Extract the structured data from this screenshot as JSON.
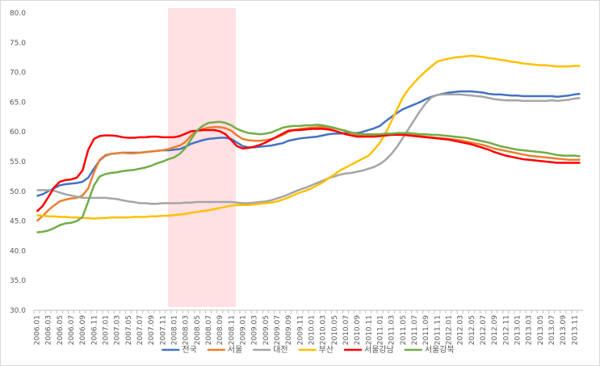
{
  "chart_data": {
    "type": "line",
    "categories": [
      "2006.01",
      null,
      "2006.03",
      null,
      "2006.05",
      null,
      "2006.07",
      null,
      "2006.09",
      null,
      "2006.11",
      null,
      "2007.01",
      null,
      "2007.03",
      null,
      "2007.05",
      null,
      "2007.07",
      null,
      "2007.09",
      null,
      "2007.11",
      null,
      "2008.01",
      null,
      "2008.03",
      null,
      "2008.05",
      null,
      "2008.07",
      null,
      "2008.09",
      null,
      "2008.11",
      null,
      "2009.01",
      null,
      "2009.03",
      null,
      "2009.05",
      null,
      "2009.07",
      null,
      "2009.09",
      null,
      "2009.11",
      null,
      "2010.01",
      null,
      "2010.03",
      null,
      "2010.05",
      null,
      "2010.07",
      null,
      "2010.09",
      null,
      "2010.11",
      null,
      "2011.01",
      null,
      "2011.03",
      null,
      "2011.05",
      null,
      "2011.07",
      null,
      "2011.09",
      null,
      "2011.11",
      null,
      "2012.01",
      null,
      "2012.03",
      null,
      "2012.05",
      null,
      "2012.07",
      null,
      "2012.09",
      null,
      "2012.11",
      null,
      "2013.01",
      null,
      "2013.03",
      null,
      "2013.05",
      null,
      "2013.07",
      null,
      "2013.09",
      null,
      "2013.11",
      null
    ],
    "series": [
      {
        "name": "전국",
        "color": "#4472c4",
        "values": [
          49.2,
          49.5,
          50.0,
          50.5,
          51.0,
          51.2,
          51.3,
          51.4,
          51.6,
          52.3,
          53.8,
          55.2,
          56.0,
          56.3,
          56.4,
          56.5,
          56.5,
          56.5,
          56.5,
          56.6,
          56.7,
          56.8,
          56.9,
          56.9,
          57.0,
          57.1,
          57.5,
          58.0,
          58.3,
          58.6,
          58.8,
          58.9,
          59.0,
          59.0,
          58.8,
          58.2,
          57.6,
          57.4,
          57.4,
          57.5,
          57.6,
          57.7,
          57.9,
          58.1,
          58.5,
          58.7,
          58.9,
          59.0,
          59.1,
          59.2,
          59.4,
          59.6,
          59.7,
          59.7,
          59.8,
          59.8,
          59.8,
          60.0,
          60.3,
          60.6,
          61.0,
          61.8,
          62.5,
          63.2,
          63.8,
          64.2,
          64.6,
          65.0,
          65.5,
          65.9,
          66.2,
          66.4,
          66.6,
          66.7,
          66.8,
          66.8,
          66.8,
          66.7,
          66.6,
          66.4,
          66.3,
          66.3,
          66.2,
          66.1,
          66.1,
          66.0,
          66.0,
          66.0,
          66.0,
          66.0,
          66.0,
          65.9,
          66.0,
          66.1,
          66.3,
          66.4
        ]
      },
      {
        "name": "서울",
        "color": "#ed7d31",
        "values": [
          45.0,
          45.8,
          46.8,
          47.6,
          48.3,
          48.6,
          48.8,
          48.9,
          49.3,
          50.5,
          53.2,
          55.3,
          56.1,
          56.3,
          56.4,
          56.5,
          56.4,
          56.4,
          56.5,
          56.6,
          56.7,
          56.8,
          56.9,
          57.1,
          57.4,
          57.7,
          58.3,
          59.4,
          60.2,
          60.5,
          60.7,
          60.8,
          60.8,
          60.6,
          60.2,
          59.4,
          58.8,
          58.6,
          58.5,
          58.5,
          58.6,
          58.8,
          59.1,
          59.5,
          60.0,
          60.3,
          60.5,
          60.6,
          60.7,
          60.8,
          60.8,
          60.7,
          60.6,
          60.4,
          60.1,
          59.8,
          59.5,
          59.4,
          59.3,
          59.3,
          59.3,
          59.4,
          59.5,
          59.6,
          59.6,
          59.5,
          59.4,
          59.3,
          59.2,
          59.1,
          59.0,
          58.9,
          58.8,
          58.7,
          58.6,
          58.4,
          58.2,
          58.0,
          57.8,
          57.5,
          57.2,
          57.0,
          56.8,
          56.6,
          56.4,
          56.2,
          56.0,
          55.9,
          55.8,
          55.7,
          55.6,
          55.5,
          55.4,
          55.3,
          55.3,
          55.3
        ]
      },
      {
        "name": "대전",
        "color": "#a5a5a5",
        "values": [
          50.2,
          50.2,
          50.2,
          50.1,
          49.8,
          49.5,
          49.3,
          49.1,
          48.9,
          48.9,
          48.9,
          48.9,
          48.9,
          48.8,
          48.7,
          48.5,
          48.3,
          48.2,
          48.0,
          48.0,
          47.9,
          47.9,
          48.0,
          48.0,
          48.0,
          48.0,
          48.1,
          48.1,
          48.2,
          48.2,
          48.2,
          48.2,
          48.2,
          48.2,
          48.2,
          48.1,
          48.0,
          48.0,
          48.1,
          48.2,
          48.3,
          48.5,
          48.8,
          49.1,
          49.5,
          49.9,
          50.3,
          50.6,
          51.0,
          51.4,
          51.8,
          52.2,
          52.5,
          52.8,
          53.0,
          53.1,
          53.3,
          53.5,
          53.8,
          54.1,
          54.6,
          55.3,
          56.3,
          57.5,
          59.0,
          60.5,
          62.0,
          63.5,
          64.8,
          65.8,
          66.2,
          66.3,
          66.3,
          66.3,
          66.3,
          66.2,
          66.1,
          66.0,
          65.9,
          65.7,
          65.5,
          65.4,
          65.3,
          65.3,
          65.3,
          65.2,
          65.2,
          65.2,
          65.2,
          65.2,
          65.3,
          65.2,
          65.3,
          65.4,
          65.6,
          65.7
        ]
      },
      {
        "name": "부산",
        "color": "#ffc000",
        "values": [
          46.0,
          45.9,
          45.8,
          45.8,
          45.7,
          45.7,
          45.6,
          45.6,
          45.5,
          45.5,
          45.4,
          45.5,
          45.5,
          45.6,
          45.6,
          45.6,
          45.6,
          45.7,
          45.7,
          45.7,
          45.8,
          45.8,
          45.9,
          45.9,
          46.0,
          46.1,
          46.2,
          46.4,
          46.5,
          46.7,
          46.8,
          47.0,
          47.2,
          47.4,
          47.6,
          47.7,
          47.7,
          47.7,
          47.8,
          47.9,
          48.0,
          48.1,
          48.3,
          48.6,
          49.0,
          49.4,
          49.8,
          50.1,
          50.5,
          51.0,
          51.5,
          52.2,
          52.8,
          53.5,
          54.0,
          54.5,
          55.0,
          55.5,
          56.0,
          57.0,
          58.2,
          59.8,
          61.8,
          63.8,
          65.8,
          67.2,
          68.3,
          69.3,
          70.2,
          71.0,
          71.8,
          72.1,
          72.3,
          72.5,
          72.6,
          72.7,
          72.8,
          72.7,
          72.6,
          72.4,
          72.3,
          72.1,
          72.0,
          71.8,
          71.7,
          71.5,
          71.4,
          71.3,
          71.2,
          71.2,
          71.1,
          71.0,
          71.0,
          71.0,
          71.1,
          71.1
        ]
      },
      {
        "name": "서울강남",
        "color": "#ff0000",
        "values": [
          46.6,
          47.5,
          49.0,
          50.6,
          51.6,
          51.9,
          52.0,
          52.3,
          53.5,
          57.0,
          58.8,
          59.3,
          59.4,
          59.4,
          59.3,
          59.1,
          59.0,
          59.0,
          59.1,
          59.1,
          59.2,
          59.2,
          59.1,
          59.1,
          59.1,
          59.3,
          59.7,
          60.1,
          60.2,
          60.3,
          60.3,
          60.3,
          60.1,
          59.6,
          58.6,
          57.6,
          57.2,
          57.3,
          57.5,
          57.8,
          58.2,
          58.7,
          59.2,
          59.7,
          60.2,
          60.3,
          60.3,
          60.4,
          60.5,
          60.5,
          60.5,
          60.4,
          60.2,
          59.9,
          59.6,
          59.4,
          59.2,
          59.2,
          59.2,
          59.2,
          59.3,
          59.4,
          59.5,
          59.5,
          59.5,
          59.4,
          59.3,
          59.2,
          59.1,
          59.0,
          58.9,
          58.8,
          58.7,
          58.5,
          58.3,
          58.1,
          57.9,
          57.6,
          57.3,
          57.0,
          56.6,
          56.3,
          56.0,
          55.8,
          55.6,
          55.4,
          55.3,
          55.2,
          55.1,
          55.0,
          54.9,
          54.8,
          54.8,
          54.8,
          54.8,
          54.8
        ]
      },
      {
        "name": "서울강북",
        "color": "#70ad47",
        "values": [
          43.1,
          43.2,
          43.4,
          43.8,
          44.3,
          44.6,
          44.7,
          45.0,
          45.7,
          48.3,
          51.0,
          52.5,
          52.9,
          53.1,
          53.2,
          53.4,
          53.5,
          53.6,
          53.8,
          54.0,
          54.3,
          54.7,
          55.0,
          55.4,
          55.7,
          56.3,
          57.3,
          58.8,
          60.2,
          61.0,
          61.5,
          61.6,
          61.7,
          61.5,
          61.1,
          60.5,
          60.1,
          59.8,
          59.7,
          59.6,
          59.7,
          59.9,
          60.3,
          60.7,
          60.9,
          61.0,
          61.0,
          61.1,
          61.1,
          61.2,
          61.1,
          60.9,
          60.7,
          60.4,
          60.2,
          59.9,
          59.7,
          59.6,
          59.6,
          59.6,
          59.6,
          59.7,
          59.7,
          59.8,
          59.8,
          59.8,
          59.7,
          59.6,
          59.6,
          59.5,
          59.5,
          59.4,
          59.3,
          59.2,
          59.1,
          59.0,
          58.8,
          58.6,
          58.4,
          58.2,
          57.9,
          57.6,
          57.4,
          57.2,
          57.0,
          56.9,
          56.8,
          56.7,
          56.6,
          56.5,
          56.3,
          56.1,
          56.0,
          56.0,
          56.0,
          55.9
        ]
      }
    ],
    "ylim": [
      30,
      80
    ],
    "yticks": [
      {
        "value": 30,
        "label": "30.0"
      },
      {
        "value": 35,
        "label": "35.0"
      },
      {
        "value": 40,
        "label": "40.0"
      },
      {
        "value": 45,
        "label": "45.0"
      },
      {
        "value": 50,
        "label": "50.0"
      },
      {
        "value": 55,
        "label": "55.0"
      },
      {
        "value": 60,
        "label": "60.0"
      },
      {
        "value": 65,
        "label": "65.0"
      },
      {
        "value": 70,
        "label": "70.0"
      },
      {
        "value": 75,
        "label": "75.0"
      },
      {
        "value": 80,
        "label": "80.0"
      }
    ],
    "grid": false,
    "legend": "bottom"
  }
}
